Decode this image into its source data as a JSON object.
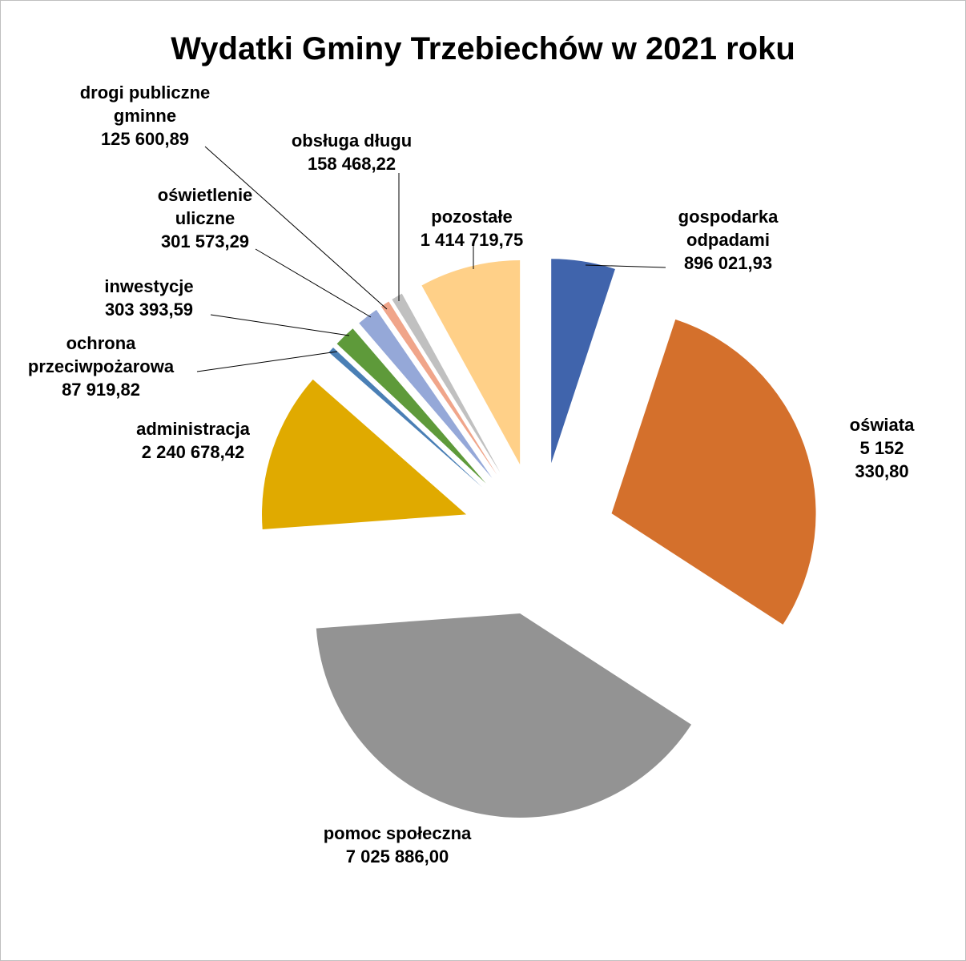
{
  "chart_data": {
    "type": "pie",
    "title": "Wydatki Gminy Trzebiechów w 2021 roku",
    "categories": [
      "gospodarka\nodpadami",
      "oświata",
      "pomoc społeczna",
      "administracja",
      "ochrona\nprzeciwpożarowa",
      "inwestycje",
      "oświetlenie\nuliczne",
      "drogi publiczne\ngminne",
      "obsługa długu",
      "pozostałe"
    ],
    "values": [
      896021.93,
      5152330.8,
      7025886.0,
      2240678.42,
      87919.82,
      303393.59,
      301573.29,
      125600.89,
      158468.22,
      1414719.75
    ],
    "value_labels": [
      "896 021,93",
      "5 152 330,80",
      "7 025 886,00",
      "2 240 678,42",
      "87 919,82",
      "303 393,59",
      "301 573,29",
      "125 600,89",
      "158 468,22",
      "1 414 719,75"
    ],
    "colors": [
      "#4064ac",
      "#d4702c",
      "#939393",
      "#e0aa00",
      "#4a7fb5",
      "#5e9a3a",
      "#95a8d8",
      "#f0a58a",
      "#c0c0c0",
      "#ffd088"
    ]
  }
}
